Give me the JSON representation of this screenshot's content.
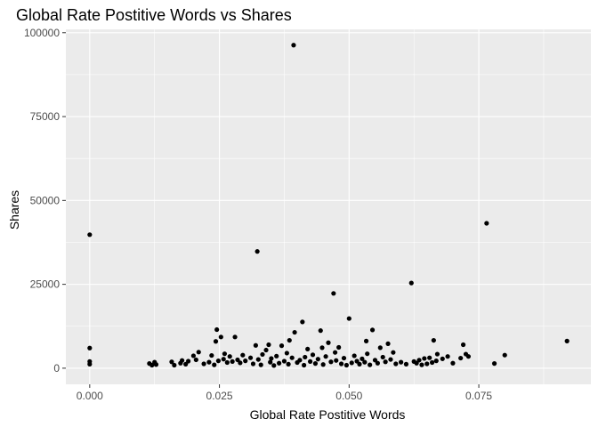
{
  "chart_data": {
    "type": "scatter",
    "title": "Global Rate Postitive Words vs Shares",
    "xlabel": "Global Rate Postitive Words",
    "ylabel": "Shares",
    "xlim": [
      -0.0046,
      0.0966
    ],
    "ylim": [
      -4800,
      101000
    ],
    "x_ticks": [
      0,
      0.025,
      0.05,
      0.075
    ],
    "x_tick_labels": [
      "0.000",
      "0.025",
      "0.050",
      "0.075"
    ],
    "y_ticks": [
      0,
      25000,
      50000,
      75000,
      100000
    ],
    "y_tick_labels": [
      "0",
      "25000",
      "50000",
      "75000",
      "100000"
    ],
    "grid": true,
    "legend": "none",
    "colors": {
      "panel": "#ebebeb",
      "grid_major": "#ffffff",
      "point": "#000000",
      "tick": "#333333"
    },
    "points": [
      [
        0.0,
        39800
      ],
      [
        0.0,
        6000
      ],
      [
        0.0,
        2000
      ],
      [
        0.0,
        1200
      ],
      [
        0.0115,
        1400
      ],
      [
        0.012,
        900
      ],
      [
        0.0125,
        1800
      ],
      [
        0.0128,
        1100
      ],
      [
        0.0158,
        1900
      ],
      [
        0.0163,
        900
      ],
      [
        0.0175,
        1500
      ],
      [
        0.0178,
        2300
      ],
      [
        0.0185,
        1200
      ],
      [
        0.019,
        2100
      ],
      [
        0.02,
        3700
      ],
      [
        0.0205,
        2500
      ],
      [
        0.021,
        4800
      ],
      [
        0.022,
        1300
      ],
      [
        0.023,
        1800
      ],
      [
        0.0235,
        3800
      ],
      [
        0.024,
        1000
      ],
      [
        0.0243,
        8000
      ],
      [
        0.0245,
        11500
      ],
      [
        0.0248,
        2200
      ],
      [
        0.0253,
        9300
      ],
      [
        0.0258,
        2700
      ],
      [
        0.026,
        4300
      ],
      [
        0.0265,
        1700
      ],
      [
        0.027,
        3500
      ],
      [
        0.0275,
        2000
      ],
      [
        0.028,
        9300
      ],
      [
        0.0285,
        2500
      ],
      [
        0.029,
        1600
      ],
      [
        0.0295,
        3900
      ],
      [
        0.03,
        2200
      ],
      [
        0.031,
        3100
      ],
      [
        0.0315,
        1300
      ],
      [
        0.032,
        6800
      ],
      [
        0.0323,
        34800
      ],
      [
        0.0325,
        2600
      ],
      [
        0.033,
        1000
      ],
      [
        0.0333,
        4100
      ],
      [
        0.034,
        5400
      ],
      [
        0.0345,
        7000
      ],
      [
        0.0348,
        1800
      ],
      [
        0.035,
        2900
      ],
      [
        0.0355,
        800
      ],
      [
        0.036,
        3600
      ],
      [
        0.0365,
        1500
      ],
      [
        0.037,
        6700
      ],
      [
        0.0375,
        2100
      ],
      [
        0.038,
        4500
      ],
      [
        0.0383,
        1200
      ],
      [
        0.0385,
        8300
      ],
      [
        0.039,
        3100
      ],
      [
        0.0393,
        96300
      ],
      [
        0.0395,
        10700
      ],
      [
        0.04,
        1700
      ],
      [
        0.0405,
        2400
      ],
      [
        0.041,
        13800
      ],
      [
        0.0413,
        900
      ],
      [
        0.0415,
        3300
      ],
      [
        0.042,
        5700
      ],
      [
        0.0425,
        2000
      ],
      [
        0.043,
        4000
      ],
      [
        0.0435,
        1400
      ],
      [
        0.044,
        2700
      ],
      [
        0.0445,
        11200
      ],
      [
        0.0448,
        6100
      ],
      [
        0.045,
        1100
      ],
      [
        0.0455,
        3500
      ],
      [
        0.046,
        7600
      ],
      [
        0.0465,
        1900
      ],
      [
        0.047,
        22300
      ],
      [
        0.0473,
        4700
      ],
      [
        0.0475,
        2300
      ],
      [
        0.048,
        6200
      ],
      [
        0.0485,
        1300
      ],
      [
        0.049,
        3000
      ],
      [
        0.0495,
        900
      ],
      [
        0.05,
        14800
      ],
      [
        0.0505,
        1600
      ],
      [
        0.051,
        3700
      ],
      [
        0.0515,
        2100
      ],
      [
        0.052,
        1200
      ],
      [
        0.0525,
        2800
      ],
      [
        0.053,
        1800
      ],
      [
        0.0533,
        8100
      ],
      [
        0.0535,
        4300
      ],
      [
        0.054,
        1000
      ],
      [
        0.0545,
        11400
      ],
      [
        0.055,
        2400
      ],
      [
        0.0555,
        1500
      ],
      [
        0.056,
        6100
      ],
      [
        0.0565,
        3300
      ],
      [
        0.057,
        1900
      ],
      [
        0.0575,
        7300
      ],
      [
        0.058,
        2600
      ],
      [
        0.0585,
        4700
      ],
      [
        0.059,
        1300
      ],
      [
        0.06,
        1800
      ],
      [
        0.061,
        1200
      ],
      [
        0.062,
        25400
      ],
      [
        0.0625,
        2000
      ],
      [
        0.063,
        1500
      ],
      [
        0.0635,
        2400
      ],
      [
        0.064,
        1000
      ],
      [
        0.0645,
        2900
      ],
      [
        0.065,
        1300
      ],
      [
        0.0655,
        3100
      ],
      [
        0.066,
        1700
      ],
      [
        0.0663,
        8300
      ],
      [
        0.0668,
        2200
      ],
      [
        0.067,
        4200
      ],
      [
        0.068,
        2800
      ],
      [
        0.069,
        3500
      ],
      [
        0.07,
        1500
      ],
      [
        0.0715,
        3000
      ],
      [
        0.072,
        7000
      ],
      [
        0.0725,
        4200
      ],
      [
        0.073,
        3500
      ],
      [
        0.0765,
        43200
      ],
      [
        0.078,
        1400
      ],
      [
        0.08,
        3900
      ],
      [
        0.092,
        8100
      ]
    ]
  }
}
